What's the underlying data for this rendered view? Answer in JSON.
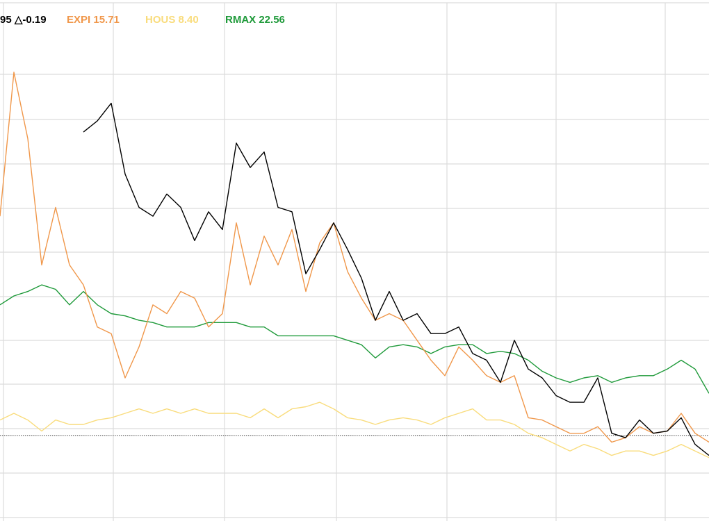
{
  "chart_data": {
    "type": "line",
    "ylim": [
      -38.6,
      196.6
    ],
    "baseline": 0,
    "series": [
      {
        "legend_value": "95 △-0.19",
        "color": "#000000",
        "values": [
          null,
          null,
          null,
          null,
          null,
          null,
          137,
          142,
          150,
          118,
          103,
          99,
          109,
          103,
          88,
          101,
          93,
          132,
          121,
          128,
          103,
          101,
          73,
          84,
          96,
          84,
          71,
          52,
          65,
          52,
          55,
          46,
          46,
          49,
          37,
          34,
          24,
          43,
          30,
          26,
          18,
          15,
          15,
          26,
          1,
          -1,
          7,
          1,
          2,
          8,
          -4,
          -9
        ]
      },
      {
        "name": "EXPI",
        "legend_value": "15.71",
        "color": "#f0974a",
        "values": [
          99,
          164,
          134,
          77,
          103,
          77,
          68,
          49,
          46,
          26,
          40,
          59,
          55,
          65,
          62,
          49,
          55,
          96,
          68,
          90,
          77,
          93,
          65,
          87,
          96,
          74,
          62,
          52,
          55,
          52,
          43,
          34,
          27,
          40,
          34,
          27,
          24,
          27,
          8,
          7,
          4,
          1,
          1,
          4,
          -3,
          -1,
          4,
          1,
          2,
          10,
          1,
          -3
        ]
      },
      {
        "name": "HOUS",
        "legend_value": "8.40",
        "color": "#f9dc7c",
        "values": [
          7,
          10,
          7,
          2,
          7,
          5,
          5,
          7,
          8,
          10,
          12,
          10,
          12,
          10,
          12,
          10,
          10,
          10,
          8,
          12,
          8,
          12,
          13,
          15,
          12,
          8,
          7,
          5,
          7,
          8,
          7,
          5,
          8,
          10,
          12,
          7,
          7,
          5,
          1,
          -1,
          -4,
          -7,
          -4,
          -6,
          -9,
          -7,
          -7,
          -9,
          -7,
          -4,
          -7,
          -10
        ]
      },
      {
        "name": "RMAX",
        "legend_value": "22.56",
        "color": "#1f9a3a",
        "values": [
          59,
          63,
          65,
          68,
          66,
          59,
          65,
          59,
          55,
          54,
          52,
          51,
          49,
          49,
          49,
          51,
          51,
          51,
          49,
          49,
          45,
          45,
          45,
          45,
          45,
          43,
          41,
          35,
          40,
          41,
          40,
          37,
          40,
          41,
          41,
          37,
          38,
          37,
          34,
          29,
          26,
          24,
          26,
          27,
          24,
          26,
          27,
          27,
          30,
          34,
          30,
          19
        ]
      }
    ]
  }
}
